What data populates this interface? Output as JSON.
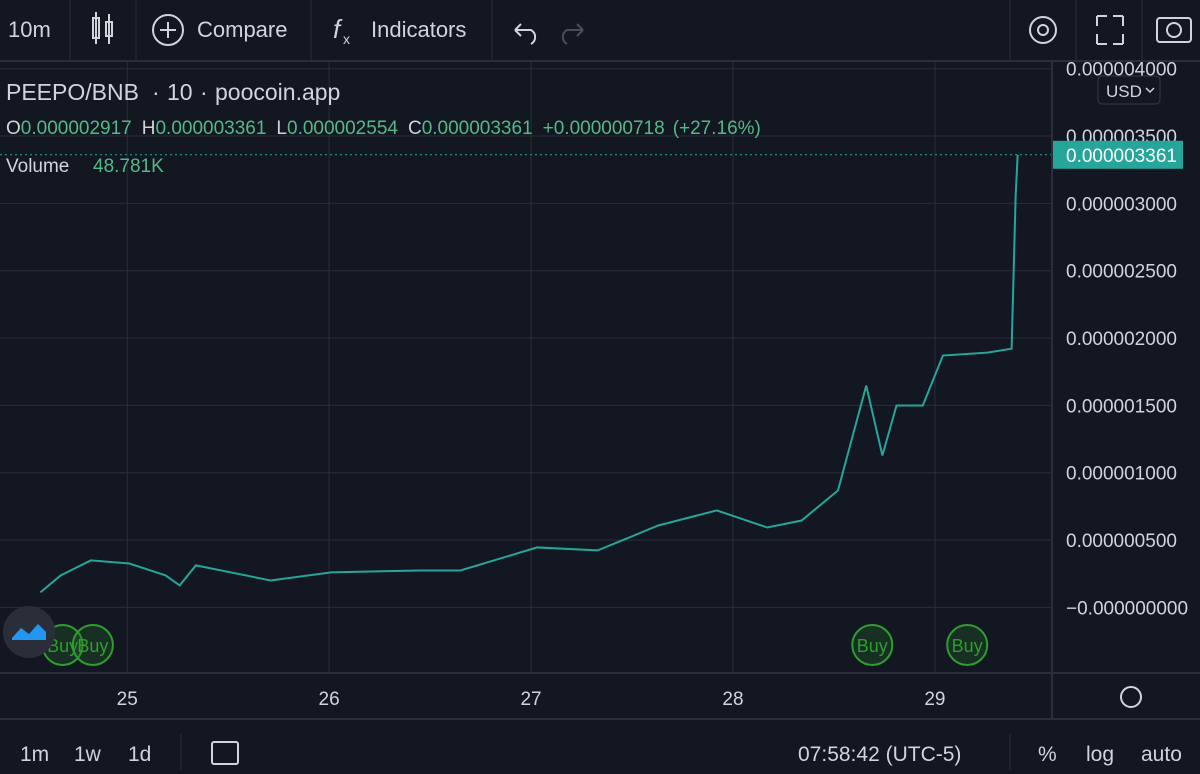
{
  "toolbar": {
    "interval": "10m",
    "compare": "Compare",
    "indicators": "Indicators"
  },
  "header": {
    "symbol": "PEEPO/BNB",
    "interval": "10",
    "source": "poocoin.app",
    "currency": "USD",
    "ohlc": [
      {
        "key": "O",
        "value": "0.000002917"
      },
      {
        "key": "H",
        "value": "0.000003361"
      },
      {
        "key": "L",
        "value": "0.000002554"
      },
      {
        "key": "C",
        "value": "0.000003361"
      }
    ],
    "change": "+0.000000718",
    "change_pct": "(+27.16%)",
    "volume_label": "Volume",
    "volume": "48.781K"
  },
  "chart_data": {
    "type": "line",
    "last_price_label": "0.000003361",
    "xlim": [
      24.37,
      29.58
    ],
    "xticks": [
      25,
      26,
      27,
      28,
      29
    ],
    "ylim": [
      -4.8e-07,
      4.05e-06
    ],
    "yticks": [
      {
        "value": 4e-06,
        "label": "0.000004000"
      },
      {
        "value": 3.5e-06,
        "label": "0.000003500"
      },
      {
        "value": 3e-06,
        "label": "0.000003000"
      },
      {
        "value": 2.5e-06,
        "label": "0.000002500"
      },
      {
        "value": 2e-06,
        "label": "0.000002000"
      },
      {
        "value": 1.5e-06,
        "label": "0.000001500"
      },
      {
        "value": 1e-06,
        "label": "0.000001000"
      },
      {
        "value": 5e-07,
        "label": "0.000000500"
      },
      {
        "value": 0,
        "label": "−0.000000000"
      }
    ],
    "grid": true,
    "series": [
      {
        "color": "#26a69a",
        "x": [
          24.57,
          24.67,
          24.82,
          25.01,
          25.19,
          25.26,
          25.34,
          25.71,
          26.01,
          26.45,
          26.65,
          27.03,
          27.33,
          27.63,
          27.92,
          28.17,
          28.34,
          28.52,
          28.66,
          28.74,
          28.81,
          28.94,
          29.04,
          29.26,
          29.38,
          29.4,
          29.41
        ],
        "values": [
          1.11e-07,
          2.37e-07,
          3.49e-07,
          3.26e-07,
          2.37e-07,
          1.63e-07,
          3.12e-07,
          2e-07,
          2.6e-07,
          2.74e-07,
          2.74e-07,
          4.45e-07,
          4.23e-07,
          6.08e-07,
          7.2e-07,
          5.93e-07,
          6.45e-07,
          8.68e-07,
          1.647e-06,
          1.128e-06,
          1.499e-06,
          1.499e-06,
          1.87e-06,
          1.892e-06,
          1.921e-06,
          3.056e-06,
          3.361e-06
        ]
      }
    ],
    "annotations": [
      {
        "x": 24.68,
        "label": "Buy"
      },
      {
        "x": 24.83,
        "label": "Buy"
      },
      {
        "x": 28.69,
        "label": "Buy"
      },
      {
        "x": 29.16,
        "label": "Buy"
      }
    ]
  },
  "footer": {
    "ranges": [
      "1m",
      "1w",
      "1d"
    ],
    "time": "07:58:42 (UTC-5)",
    "percent": "%",
    "log": "log",
    "auto": "auto"
  }
}
